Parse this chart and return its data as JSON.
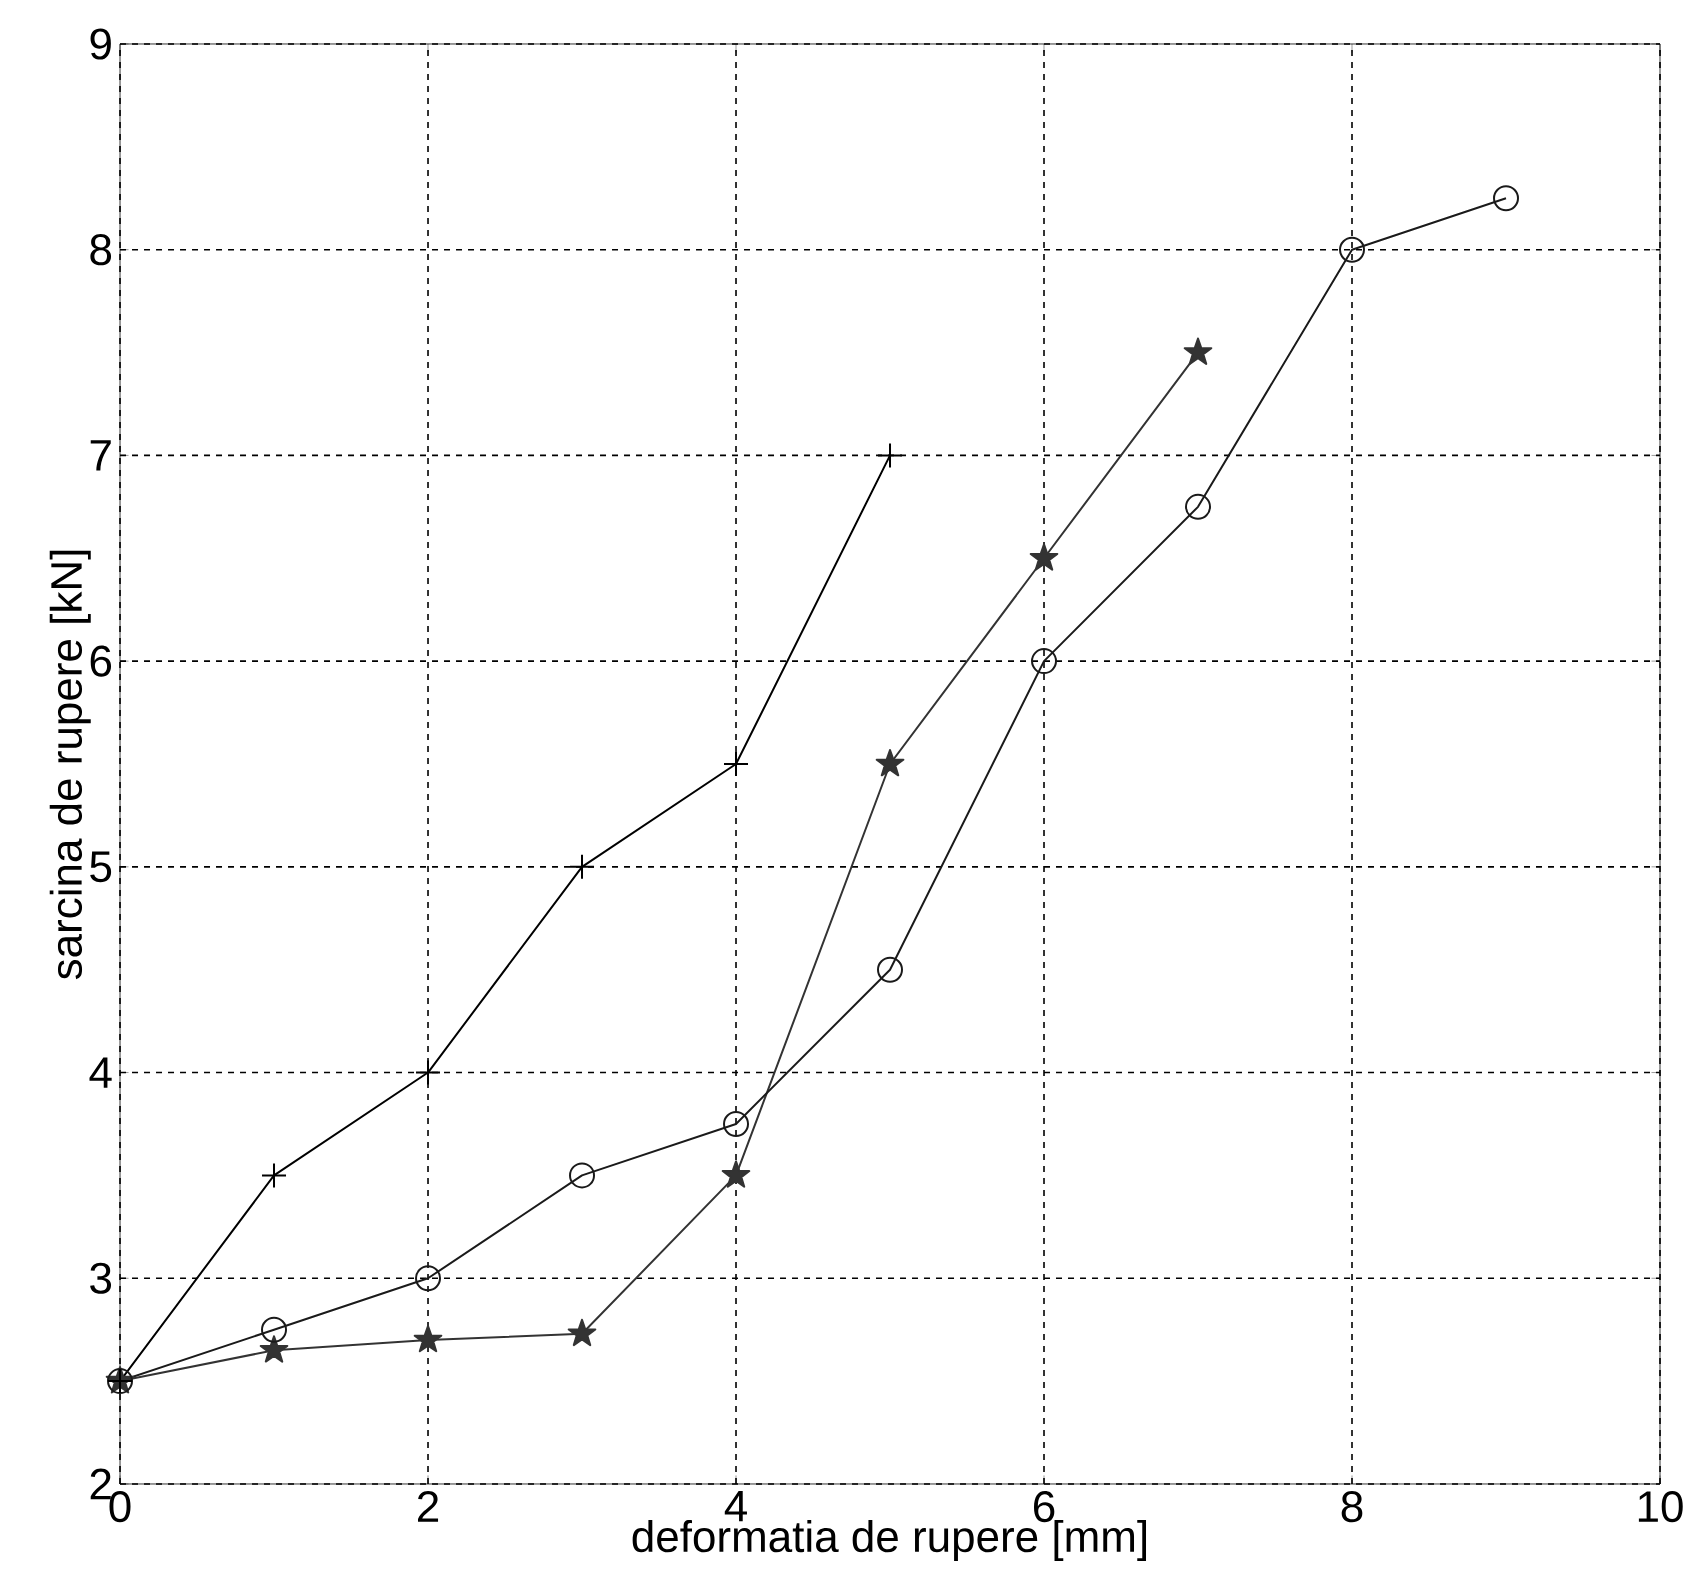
{
  "chart_data": {
    "type": "line",
    "xlabel": "deformatia de rupere [mm]",
    "ylabel": "sarcina de rupere [kN]",
    "xlim": [
      0,
      10
    ],
    "xticks": [
      0,
      2,
      4,
      6,
      8,
      10
    ],
    "ylim": [
      2,
      9
    ],
    "yticks": [
      2,
      3,
      4,
      5,
      6,
      7,
      8,
      9
    ],
    "grid": true,
    "series": [
      {
        "color": "#000000",
        "marker": "cross",
        "x": [
          0,
          1,
          2,
          3,
          4,
          5
        ],
        "values": [
          2.5,
          3.5,
          4,
          5,
          5.5,
          7
        ]
      },
      {
        "color": "#1a1a1a",
        "marker": "circle",
        "x": [
          0,
          1,
          2,
          3,
          4,
          5,
          6,
          7,
          8,
          9
        ],
        "values": [
          2.5,
          2.75,
          3,
          3.5,
          3.75,
          4.5,
          6,
          6.75,
          8,
          8.25
        ]
      },
      {
        "color": "#333333",
        "marker": "star",
        "x": [
          0,
          1,
          2,
          3,
          4,
          5,
          6,
          7
        ],
        "values": [
          2.5,
          2.65,
          2.7,
          2.73,
          3.5,
          5.5,
          6.5,
          7.5
        ]
      }
    ]
  }
}
